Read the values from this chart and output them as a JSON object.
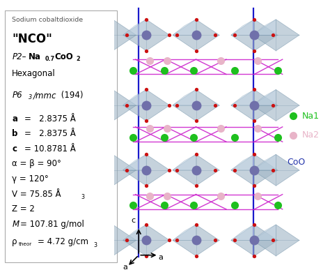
{
  "background_color": "#ffffff",
  "title_small": "Sodium cobaltdioxide",
  "title_nco": "\"NCO\"",
  "title_system": "Hexagonal",
  "na1_color": "#1ec01e",
  "na2_color": "#e8b4c8",
  "co_color": "#7070aa",
  "o_color": "#cc1111",
  "coo6_color": "#2233aa",
  "oct_fill": "#9aabb8",
  "oct_edge": "#6688aa",
  "cell_line_color": "#1a1acc",
  "na_line_color": "#cc22cc",
  "fig_width": 4.74,
  "fig_height": 3.87
}
